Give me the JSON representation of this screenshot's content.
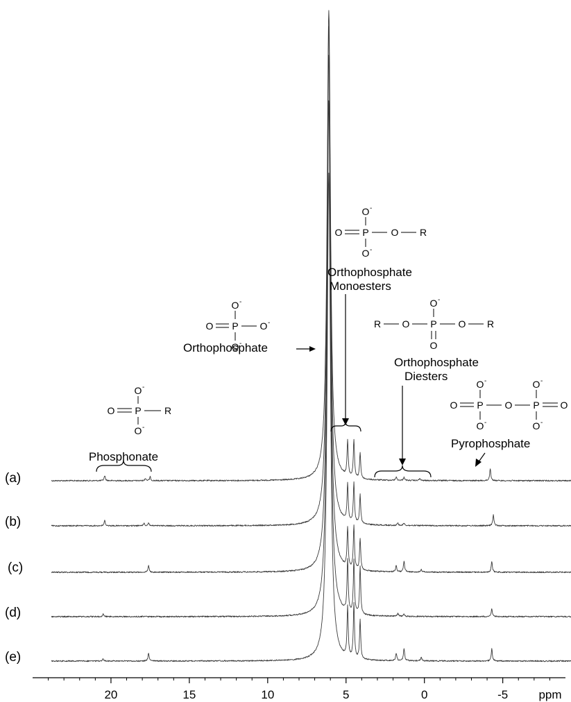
{
  "chart_data": {
    "type": "line",
    "title": "",
    "xlabel": "ppm",
    "ylabel": "",
    "xlim": [
      25,
      -9
    ],
    "x_reversed": true,
    "grid": false,
    "x_ticks": [
      20,
      15,
      10,
      5,
      0,
      -5
    ],
    "x_tick_labels": [
      "20",
      "15",
      "10",
      "5",
      "0",
      "-5"
    ],
    "series": [
      {
        "name": "(a)",
        "peaks": [
          {
            "ppm": 20.4,
            "height": 0.0109
          },
          {
            "ppm": 17.8,
            "height": 0.005
          },
          {
            "ppm": 17.5,
            "height": 0.008
          },
          {
            "ppm": 6.1,
            "height": 1.0
          },
          {
            "ppm": 4.9,
            "height": 0.075
          },
          {
            "ppm": 4.5,
            "height": 0.081
          },
          {
            "ppm": 4.1,
            "height": 0.055
          },
          {
            "ppm": 1.8,
            "height": 0.007
          },
          {
            "ppm": 1.3,
            "height": 0.007
          },
          {
            "ppm": 0.3,
            "height": 0.004
          },
          {
            "ppm": -4.2,
            "height": 0.026
          }
        ]
      },
      {
        "name": "(b)",
        "peaks": [
          {
            "ppm": 20.4,
            "height": 0.0101
          },
          {
            "ppm": 17.9,
            "height": 0.005
          },
          {
            "ppm": 17.6,
            "height": 0.006
          },
          {
            "ppm": 6.1,
            "height": 0.97
          },
          {
            "ppm": 4.9,
            "height": 0.072
          },
          {
            "ppm": 4.5,
            "height": 0.078
          },
          {
            "ppm": 4.1,
            "height": 0.056
          },
          {
            "ppm": 1.7,
            "height": 0.005
          },
          {
            "ppm": 1.3,
            "height": 0.005
          },
          {
            "ppm": -4.4,
            "height": 0.021
          }
        ]
      },
      {
        "name": "(c)",
        "peaks": [
          {
            "ppm": 17.6,
            "height": 0.0117
          },
          {
            "ppm": 6.1,
            "height": 0.92
          },
          {
            "ppm": 4.9,
            "height": 0.07
          },
          {
            "ppm": 4.5,
            "height": 0.077
          },
          {
            "ppm": 4.1,
            "height": 0.056
          },
          {
            "ppm": 1.8,
            "height": 0.0109
          },
          {
            "ppm": 1.3,
            "height": 0.0195
          },
          {
            "ppm": 0.2,
            "height": 0.005
          },
          {
            "ppm": -4.3,
            "height": 0.0188
          }
        ]
      },
      {
        "name": "(d)",
        "peaks": [
          {
            "ppm": 20.5,
            "height": 0.004
          },
          {
            "ppm": 6.1,
            "height": 0.85
          },
          {
            "ppm": 4.9,
            "height": 0.086
          },
          {
            "ppm": 4.5,
            "height": 0.087
          },
          {
            "ppm": 4.1,
            "height": 0.078
          },
          {
            "ppm": 1.7,
            "height": 0.005
          },
          {
            "ppm": 1.3,
            "height": 0.004
          },
          {
            "ppm": -4.3,
            "height": 0.0133
          }
        ]
      },
      {
        "name": "(e)",
        "peaks": [
          {
            "ppm": 20.5,
            "height": 0.003
          },
          {
            "ppm": 17.6,
            "height": 0.0125
          },
          {
            "ppm": 6.1,
            "height": 0.75
          },
          {
            "ppm": 4.9,
            "height": 0.076
          },
          {
            "ppm": 4.5,
            "height": 0.083
          },
          {
            "ppm": 4.1,
            "height": 0.06
          },
          {
            "ppm": 1.8,
            "height": 0.0109
          },
          {
            "ppm": 1.3,
            "height": 0.0195
          },
          {
            "ppm": 0.2,
            "height": 0.005
          },
          {
            "ppm": -4.3,
            "height": 0.0188
          }
        ]
      }
    ],
    "annotations": [
      {
        "text": "Phosphonate",
        "ppm_range": [
          17.3,
          20.8
        ]
      },
      {
        "text": "Orthophosphate",
        "ppm": 6.2
      },
      {
        "text": "Orthophosphate Monoesters",
        "ppm_range": [
          3.6,
          5.6
        ]
      },
      {
        "text": "Orthophosphate Diesters",
        "ppm_range": [
          -1.0,
          2.5
        ]
      },
      {
        "text": "Pyrophosphate",
        "ppm": -4.2
      }
    ]
  },
  "labels": {
    "trace_a": "(a)",
    "trace_b": "(b)",
    "trace_c": "(c)",
    "trace_d": "(d)",
    "trace_e": "(e)",
    "x_unit": "ppm",
    "phosphonate": "Phosphonate",
    "orthophosphate": "Orthophosphate",
    "monoesters_line1": "Orthophosphate",
    "monoesters_line2": "Monoesters",
    "diesters_line1": "Orthophosphate",
    "diesters_line2": "Diesters",
    "pyrophosphate": "Pyrophosphate"
  },
  "structures": {
    "phosphonate": {
      "o_top": "O",
      "charge": "-",
      "o_left": "O",
      "p": "P",
      "r": "R",
      "o_bottom": "O"
    },
    "orthophosphate": {
      "o_top": "O",
      "charge": "-",
      "o_left": "O",
      "p": "P",
      "o_right": "O",
      "o_bottom": "O"
    },
    "monoester": {
      "o_top": "O",
      "charge": "-",
      "o_left": "O",
      "p": "P",
      "o_right": "O",
      "r": "R",
      "o_bottom": "O"
    },
    "diester": {
      "r_left": "R",
      "o_left": "O",
      "o_top": "O",
      "charge": "-",
      "p": "P",
      "o_right": "O",
      "r_right": "R",
      "o_bottom": "O"
    },
    "pyrophosphate": {
      "o_left": "O",
      "p": "P",
      "o_bridge": "O",
      "o_right": "O",
      "o_top": "O",
      "o_bottom": "O",
      "charge": "-"
    }
  },
  "colors": {
    "trace": "#3a3a3a",
    "ink": "#000000",
    "background": "#ffffff"
  }
}
